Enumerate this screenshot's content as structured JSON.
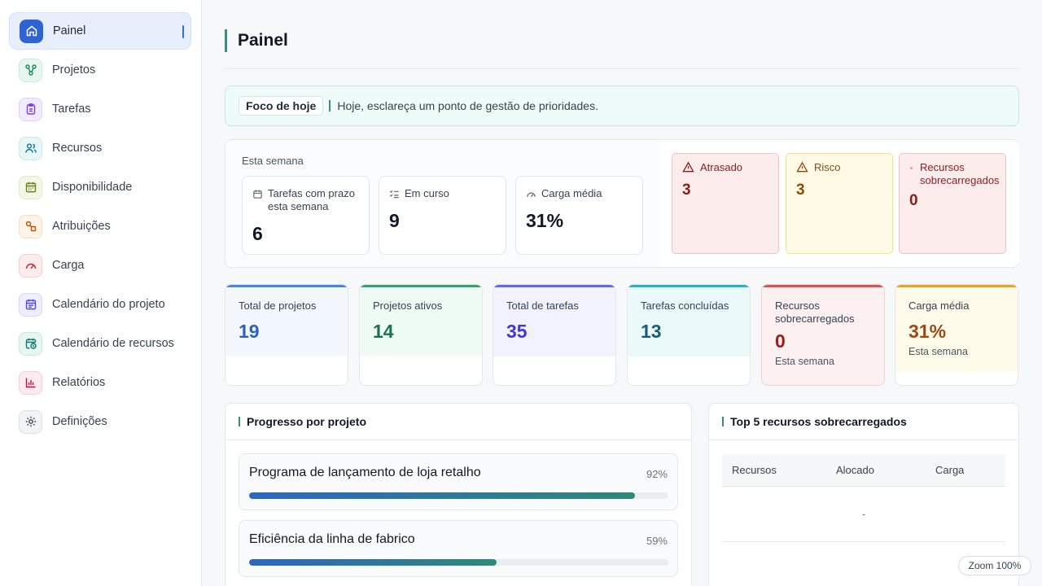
{
  "sidebar": {
    "items": [
      {
        "label": "Painel"
      },
      {
        "label": "Projetos"
      },
      {
        "label": "Tarefas"
      },
      {
        "label": "Recursos"
      },
      {
        "label": "Disponibilidade"
      },
      {
        "label": "Atribuições"
      },
      {
        "label": "Carga"
      },
      {
        "label": "Calendário do projeto"
      },
      {
        "label": "Calendário de recursos"
      },
      {
        "label": "Relatórios"
      },
      {
        "label": "Definições"
      }
    ]
  },
  "header": {
    "title": "Painel"
  },
  "focus": {
    "chip": "Foco de hoje",
    "text": "Hoje, esclareça um ponto de gestão de prioridades."
  },
  "week": {
    "label": "Esta semana",
    "cards": [
      {
        "label": "Tarefas com prazo esta semana",
        "value": "6"
      },
      {
        "label": "Em curso",
        "value": "9"
      },
      {
        "label": "Carga média",
        "value": "31%"
      }
    ],
    "alerts": [
      {
        "label": "Atrasado",
        "value": "3"
      },
      {
        "label": "Risco",
        "value": "3"
      },
      {
        "label": "Recursos sobrecarregados",
        "value": "0"
      }
    ]
  },
  "stats": [
    {
      "label": "Total de projetos",
      "value": "19",
      "sub": "",
      "color": "#2b5fc0"
    },
    {
      "label": "Projetos ativos",
      "value": "14",
      "sub": "",
      "color": "#19744f"
    },
    {
      "label": "Total de tarefas",
      "value": "35",
      "sub": "",
      "color": "#4338ca"
    },
    {
      "label": "Tarefas concluídas",
      "value": "13",
      "sub": "",
      "color": "#155e75"
    },
    {
      "label": "Recursos sobrecarregados",
      "value": "0",
      "sub": "Esta semana",
      "color": "#9b1c1c"
    },
    {
      "label": "Carga média",
      "value": "31%",
      "sub": "Esta semana",
      "color": "#9a4a12"
    }
  ],
  "progress": {
    "title": "Progresso por projeto",
    "projects": [
      {
        "name": "Programa de lançamento de loja retalho",
        "pct_label": "92%",
        "pct": 0.92
      },
      {
        "name": "Eficiência da linha de fabrico",
        "pct_label": "59%",
        "pct": 0.59
      }
    ]
  },
  "top": {
    "title": "Top 5 recursos sobrecarregados",
    "columns": [
      "Recursos",
      "Alocado",
      "Carga"
    ],
    "empty": "-"
  },
  "zoom": {
    "label": "Zoom 100%"
  }
}
